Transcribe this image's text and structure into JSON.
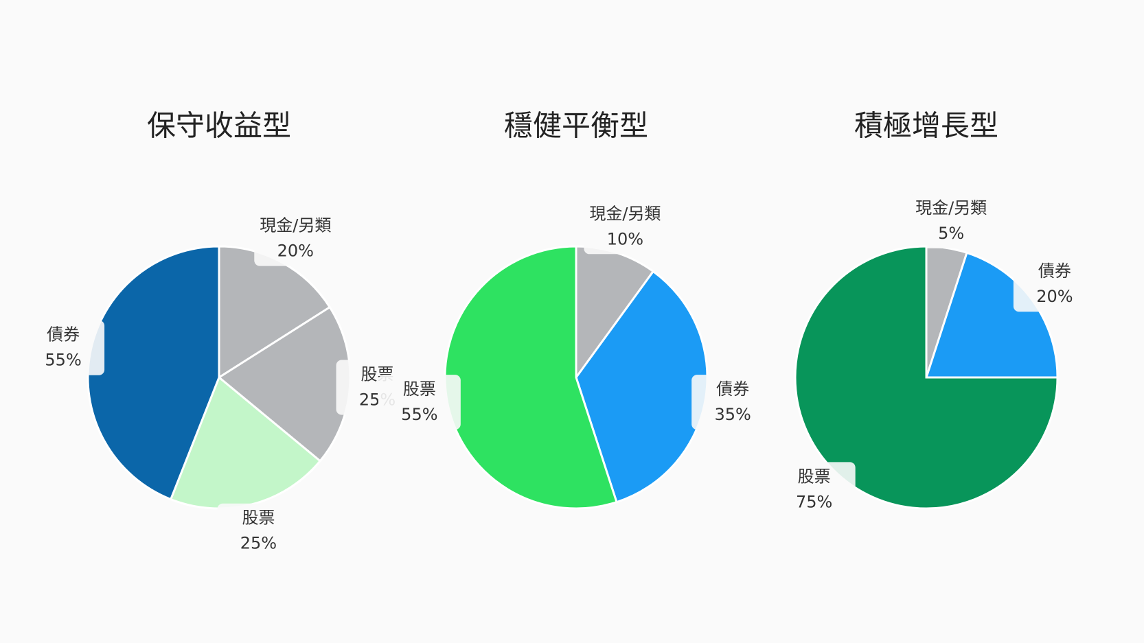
{
  "chart_data": [
    {
      "type": "pie",
      "title": "保守收益型",
      "categories": [
        "現金/另類",
        "股票",
        "股票",
        "債券"
      ],
      "values": [
        20,
        25,
        25,
        55
      ],
      "value_labels": [
        "20%",
        "25%",
        "25%",
        "55%"
      ],
      "colors": [
        "#b4b6b9",
        "#b4b6b9",
        "#c3f6c9",
        "#0b66a9"
      ]
    },
    {
      "type": "pie",
      "title": "穩健平衡型",
      "categories": [
        "現金/另類",
        "債券",
        "股票"
      ],
      "values": [
        10,
        35,
        55
      ],
      "value_labels": [
        "10%",
        "35%",
        "55%"
      ],
      "colors": [
        "#b4b6b9",
        "#1b9bf5",
        "#2ee261"
      ]
    },
    {
      "type": "pie",
      "title": "積極增長型",
      "categories": [
        "現金/另類",
        "債券",
        "股票"
      ],
      "values": [
        5,
        20,
        75
      ],
      "value_labels": [
        "5%",
        "20%",
        "75%"
      ],
      "colors": [
        "#b4b6b9",
        "#1b9bf5",
        "#08955a"
      ]
    }
  ]
}
